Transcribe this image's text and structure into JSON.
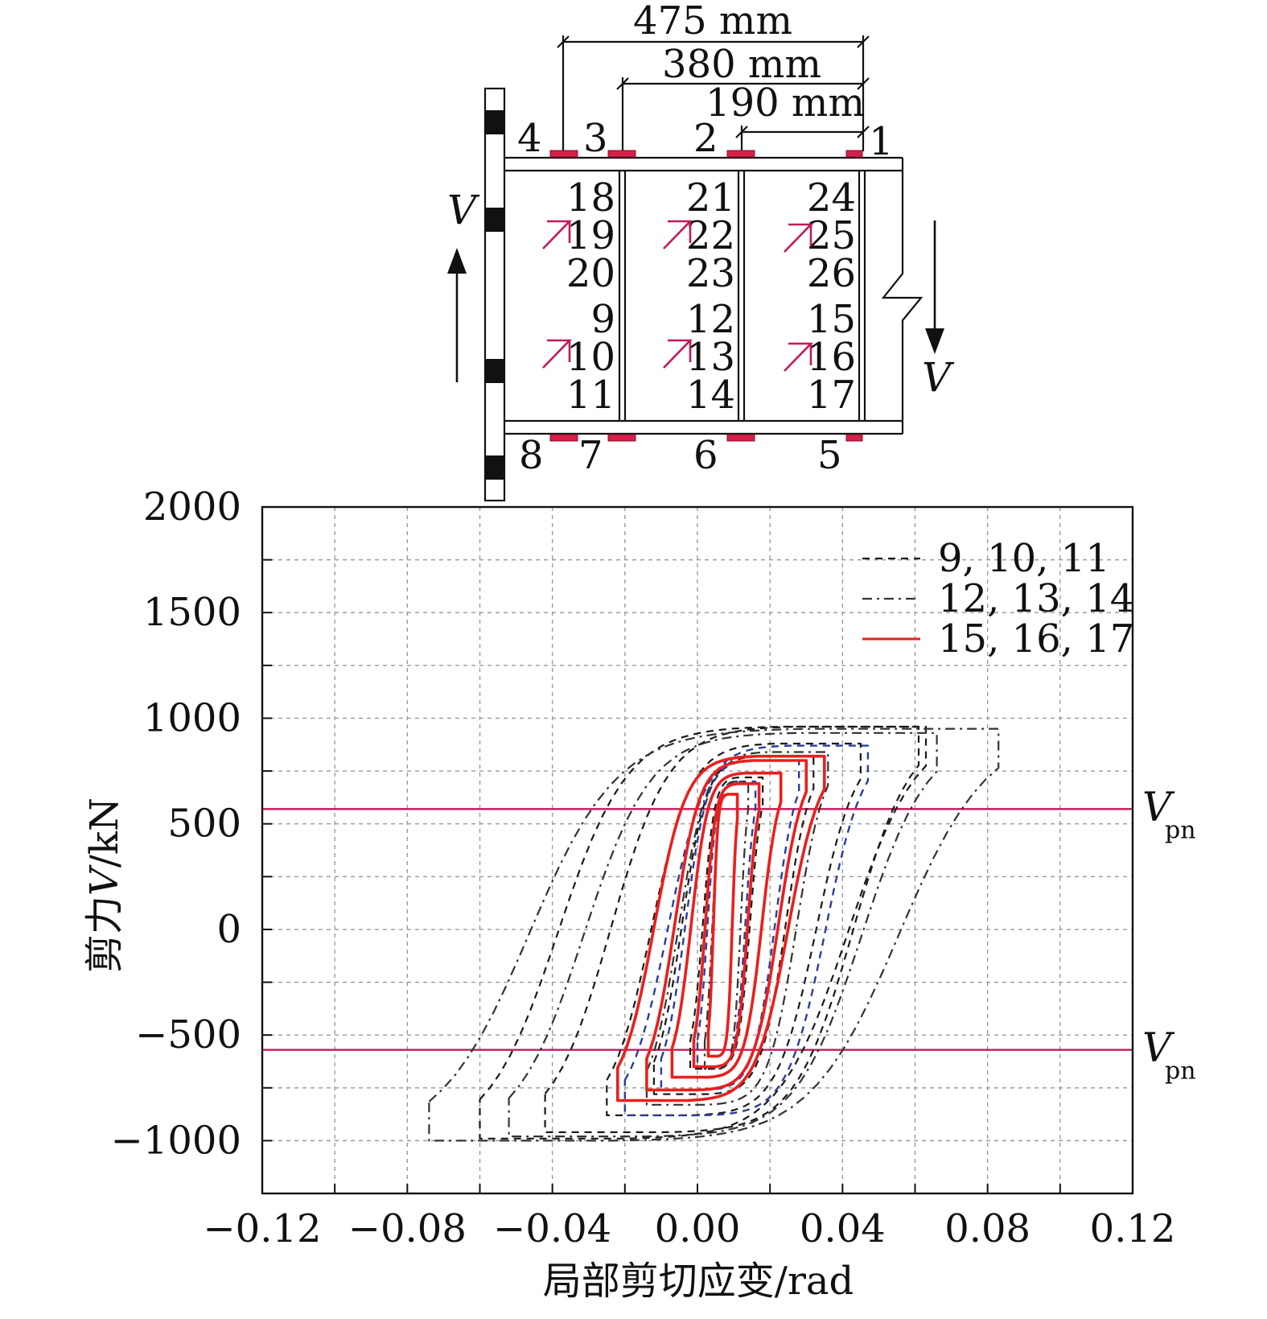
{
  "diagram": {
    "dimensions": [
      "475 mm",
      "380 mm",
      "190 mm"
    ],
    "top_labels": [
      "4",
      "3",
      "2",
      "1"
    ],
    "bottom_labels": [
      "8",
      "7",
      "6",
      "5"
    ],
    "cells": [
      [
        "18",
        "19",
        "20"
      ],
      [
        "21",
        "22",
        "23"
      ],
      [
        "24",
        "25",
        "26"
      ],
      [
        "9",
        "10",
        "11"
      ],
      [
        "12",
        "13",
        "14"
      ],
      [
        "15",
        "16",
        "17"
      ]
    ],
    "force_label_left": "V",
    "force_label_right": "V",
    "colors": {
      "gauge": "#d6204a",
      "arrow": "#c2185b"
    }
  },
  "chart_data": {
    "type": "line",
    "xlabel": "局部剪切应变/rad",
    "ylabel_prefix": "剪力",
    "ylabel_var": "V",
    "ylabel_unit": "/kN",
    "xlim": [
      -0.12,
      0.12
    ],
    "ylim": [
      -1250,
      2000
    ],
    "xticks": [
      -0.12,
      -0.08,
      -0.04,
      0.0,
      0.04,
      0.08,
      0.12
    ],
    "xtick_labels": [
      "−0.12",
      "−0.08",
      "−0.04",
      "0.00",
      "0.04",
      "0.08",
      "0.12"
    ],
    "yticks": [
      -1000,
      -500,
      0,
      500,
      1000,
      1500,
      2000
    ],
    "ytick_labels": [
      "−1000",
      "−500",
      "0",
      "500",
      "1000",
      "1500",
      "2000"
    ],
    "grid": true,
    "legend_position": "top-right",
    "reference_lines": [
      {
        "y": 570,
        "label_main": "V",
        "label_sub": "pn",
        "color": "#c2185b"
      },
      {
        "y": -570,
        "label_main": "V",
        "label_sub": "pn",
        "color": "#c2185b"
      }
    ],
    "series": [
      {
        "name": "9, 10, 11",
        "color": "#1a1a1a",
        "dash": "9,7",
        "width": 2.2,
        "loops": [
          {
            "xmin": -0.002,
            "xmax": 0.018,
            "vmax": 720,
            "vmin": -660
          },
          {
            "xmin": -0.012,
            "xmax": 0.032,
            "vmax": 820,
            "vmin": -780
          },
          {
            "xmin": -0.025,
            "xmax": 0.045,
            "vmax": 880,
            "vmin": -880
          },
          {
            "xmin": -0.042,
            "xmax": 0.061,
            "vmax": 960,
            "vmin": -960
          },
          {
            "xmin": -0.06,
            "xmax": 0.063,
            "vmax": 960,
            "vmin": -990
          }
        ]
      },
      {
        "name": "",
        "color": "#2b3d9a",
        "dash": "9,7",
        "width": 2.4,
        "loops": [
          {
            "xmin": 0.0,
            "xmax": 0.016,
            "vmax": 700,
            "vmin": -650
          },
          {
            "xmin": -0.01,
            "xmax": 0.028,
            "vmax": 800,
            "vmin": -760
          },
          {
            "xmin": -0.02,
            "xmax": 0.047,
            "vmax": 870,
            "vmin": -880
          }
        ]
      },
      {
        "name": "12, 13, 14",
        "color": "#333333",
        "dash": "12,6,3,6",
        "width": 2.2,
        "loops": [
          {
            "xmin": 0.002,
            "xmax": 0.014,
            "vmax": 700,
            "vmin": -660
          },
          {
            "xmin": -0.014,
            "xmax": 0.036,
            "vmax": 840,
            "vmin": -830
          },
          {
            "xmin": -0.052,
            "xmax": 0.066,
            "vmax": 930,
            "vmin": -980
          },
          {
            "xmin": -0.074,
            "xmax": 0.083,
            "vmax": 950,
            "vmin": -1000
          }
        ]
      },
      {
        "name": "15, 16, 17",
        "color": "#e8201e",
        "dash": "",
        "width": 3.6,
        "loops": [
          {
            "xmin": 0.003,
            "xmax": 0.011,
            "vmax": 640,
            "vmin": -600
          },
          {
            "xmin": -0.001,
            "xmax": 0.017,
            "vmax": 690,
            "vmin": -650
          },
          {
            "xmin": -0.007,
            "xmax": 0.023,
            "vmax": 740,
            "vmin": -700
          },
          {
            "xmin": -0.014,
            "xmax": 0.03,
            "vmax": 800,
            "vmin": -760
          },
          {
            "xmin": -0.022,
            "xmax": 0.035,
            "vmax": 820,
            "vmin": -810
          }
        ]
      }
    ]
  }
}
